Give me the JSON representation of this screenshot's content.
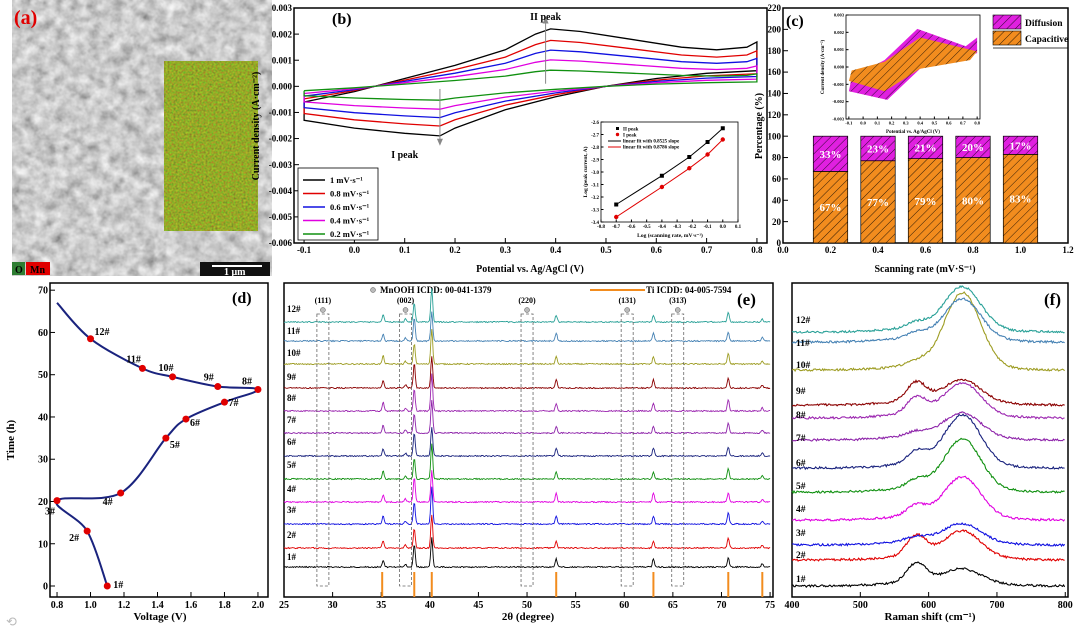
{
  "chart_data": {
    "a": {
      "panel_label": "(a)",
      "legend": [
        {
          "label": "O",
          "color": "#2e7d32"
        },
        {
          "label": "Mn",
          "color": "#e00000"
        }
      ],
      "scale_bar": "1 μm"
    },
    "b": {
      "type": "line",
      "panel_label": "(b)",
      "xlabel": "Potential vs. Ag/AgCl (V)",
      "ylabel": "Current density (A·cm⁻²)",
      "xlim": [
        -0.12,
        0.82
      ],
      "ylim": [
        -0.006,
        0.003
      ],
      "xticks": [
        -0.1,
        0.0,
        0.1,
        0.2,
        0.3,
        0.4,
        0.5,
        0.6,
        0.7,
        0.8
      ],
      "xtick_labels": [
        "-0.1",
        "0.0",
        "0.1",
        "0.2",
        "0.3",
        "0.4",
        "0.5",
        "0.6",
        "0.7",
        "0.8"
      ],
      "yticks": [
        0.003,
        0.002,
        0.001,
        0.0,
        -0.001,
        -0.002,
        -0.003,
        -0.004,
        -0.005,
        -0.006
      ],
      "ytick_labels": [
        "0.003",
        "0.002",
        "0.001",
        "0.000",
        "-0.001",
        "-0.002",
        "-0.003",
        "-0.004",
        "-0.005",
        "-0.006"
      ],
      "annotations": [
        "II peak",
        "I peak"
      ],
      "base_anodic": [
        [
          -0.1,
          -0.0006
        ],
        [
          0,
          -0.0002
        ],
        [
          0.1,
          0.0003
        ],
        [
          0.2,
          0.0008
        ],
        [
          0.3,
          0.0014
        ],
        [
          0.36,
          0.002
        ],
        [
          0.39,
          0.0022
        ],
        [
          0.45,
          0.0021
        ],
        [
          0.55,
          0.0018
        ],
        [
          0.65,
          0.0015
        ],
        [
          0.72,
          0.0014
        ],
        [
          0.78,
          0.0015
        ],
        [
          0.8,
          0.0017
        ]
      ],
      "base_cathodic": [
        [
          0.8,
          0.0006
        ],
        [
          0.7,
          0.0005
        ],
        [
          0.6,
          0.0003
        ],
        [
          0.5,
          0.0
        ],
        [
          0.4,
          -0.0004
        ],
        [
          0.3,
          -0.0009
        ],
        [
          0.2,
          -0.0016
        ],
        [
          0.17,
          -0.0019
        ],
        [
          0.1,
          -0.0018
        ],
        [
          0.0,
          -0.0016
        ],
        [
          -0.1,
          -0.0013
        ],
        [
          -0.1,
          -0.0006
        ]
      ],
      "series": [
        {
          "name": "1 mV·s⁻¹",
          "scale": 1.0,
          "color": "#000000"
        },
        {
          "name": "0.8 mV·s⁻¹",
          "scale": 0.8,
          "color": "#e00000"
        },
        {
          "name": "0.6 mV·s⁻¹",
          "scale": 0.63,
          "color": "#1010e0"
        },
        {
          "name": "0.4 mV·s⁻¹",
          "scale": 0.46,
          "color": "#e000e0"
        },
        {
          "name": "0.2 mV·s⁻¹",
          "scale": 0.28,
          "color": "#109010"
        }
      ],
      "inset": {
        "type": "scatter",
        "xlabel": "Log (scanning rate, mV·s⁻¹)",
        "ylabel": "Log (peak current, A)",
        "xlim": [
          -0.8,
          0.1
        ],
        "ylim": [
          -3.4,
          -2.6
        ],
        "xticks": [
          -0.8,
          -0.7,
          -0.6,
          -0.5,
          -0.4,
          -0.3,
          -0.2,
          -0.1,
          0.0,
          0.1
        ],
        "xtick_labels": [
          "-0.8",
          "-0.7",
          "-0.6",
          "-0.5",
          "-0.4",
          "-0.3",
          "-0.2",
          "-0.1",
          "0.0",
          "0.1"
        ],
        "yticks": [
          -2.6,
          -2.7,
          -2.8,
          -2.9,
          -3.0,
          -3.1,
          -3.2,
          -3.3,
          -3.4
        ],
        "ytick_labels": [
          "-2.6",
          "-2.7",
          "-2.8",
          "-2.9",
          "-3.0",
          "-3.1",
          "-3.2",
          "-3.3",
          "-3.4"
        ],
        "x": [
          -0.7,
          -0.4,
          -0.22,
          -0.1,
          0.0
        ],
        "series": [
          {
            "name": "II peak",
            "color": "#000000",
            "marker": "square",
            "values": [
              -3.26,
              -3.03,
              -2.88,
              -2.76,
              -2.65
            ]
          },
          {
            "name": "I peak",
            "color": "#e00000",
            "marker": "circle",
            "values": [
              -3.36,
              -3.12,
              -2.97,
              -2.86,
              -2.74
            ]
          }
        ],
        "fits": [
          {
            "name": "linear fit with 0.8525 slope",
            "color": "#000000"
          },
          {
            "name": "linear fit with 0.8786 slope",
            "color": "#e00000"
          }
        ]
      }
    },
    "c": {
      "type": "bar",
      "panel_label": "(c)",
      "xlabel": "Scanning rate (mV·S⁻¹)",
      "ylabel": "Percentage (%)",
      "xlim": [
        0,
        1.2
      ],
      "ylim": [
        0,
        220
      ],
      "xticks": [
        0.0,
        0.2,
        0.4,
        0.6,
        0.8,
        1.0,
        1.2
      ],
      "xtick_labels": [
        "0.0",
        "0.2",
        "0.4",
        "0.6",
        "0.8",
        "1.0",
        "1.2"
      ],
      "yticks": [
        0,
        20,
        40,
        60,
        80,
        100,
        120,
        140,
        160,
        180,
        200,
        220
      ],
      "ytick_labels": [
        "0",
        "20",
        "40",
        "60",
        "80",
        "100",
        "120",
        "140",
        "160",
        "180",
        "200",
        "220"
      ],
      "categories": [
        0.2,
        0.4,
        0.6,
        0.8,
        1.0
      ],
      "series": [
        {
          "name": "Capacitive",
          "color": "#f28c1e",
          "values": [
            67,
            77,
            79,
            80,
            83
          ],
          "labels": [
            "67%",
            "77%",
            "79%",
            "80%",
            "83%"
          ]
        },
        {
          "name": "Diffusion",
          "color": "#e020e0",
          "values": [
            33,
            23,
            21,
            20,
            17
          ],
          "labels": [
            "33%",
            "23%",
            "21%",
            "20%",
            "17%"
          ]
        }
      ],
      "inset": {
        "type": "area",
        "xlabel": "Potential vs. Ag/AgCl (V)",
        "ylabel": "Current density (A·cm⁻²)",
        "xlim": [
          -0.12,
          0.82
        ],
        "ylim": [
          -0.003,
          0.003
        ],
        "xticks": [
          -0.1,
          0.0,
          0.1,
          0.2,
          0.3,
          0.4,
          0.5,
          0.6,
          0.7,
          0.8
        ],
        "xtick_labels": [
          "-0.1",
          "0.0",
          "0.1",
          "0.2",
          "0.3",
          "0.4",
          "0.5",
          "0.6",
          "0.7",
          "0.8"
        ],
        "yticks": [
          0.003,
          0.002,
          0.001,
          0.0,
          -0.001,
          -0.002,
          -0.003
        ],
        "ytick_labels": [
          "0.003",
          "0.002",
          "0.001",
          "0.000",
          "-0.001",
          "-0.002",
          "-0.003"
        ],
        "diffusion": [
          [
            -0.1,
            -0.0014
          ],
          [
            -0.08,
            -0.0006
          ],
          [
            0.15,
            0.0004
          ],
          [
            0.38,
            0.0022
          ],
          [
            0.55,
            0.0017
          ],
          [
            0.72,
            0.0012
          ],
          [
            0.8,
            0.0017
          ],
          [
            0.8,
            0.0008
          ],
          [
            0.6,
            0.0003
          ],
          [
            0.4,
            -0.0001
          ],
          [
            0.17,
            -0.0019
          ],
          [
            -0.1,
            -0.0014
          ]
        ],
        "capacitive": [
          [
            -0.1,
            -0.0008
          ],
          [
            -0.08,
            -0.0002
          ],
          [
            0.15,
            0.0003
          ],
          [
            0.4,
            0.0017
          ],
          [
            0.8,
            0.0009
          ],
          [
            0.75,
            0.0004
          ],
          [
            0.4,
            -0.0001
          ],
          [
            0.15,
            -0.0014
          ],
          [
            -0.1,
            -0.0008
          ]
        ]
      }
    },
    "d": {
      "type": "line",
      "panel_label": "(d)",
      "xlabel": "Voltage (V)",
      "ylabel": "Time (h)",
      "xlim": [
        0.758,
        2.06
      ],
      "ylim": [
        -2.6,
        71.7
      ],
      "xticks": [
        0.8,
        1.0,
        1.2,
        1.4,
        1.6,
        1.8,
        2.0
      ],
      "xtick_labels": [
        "0.8",
        "1.0",
        "1.2",
        "1.4",
        "1.6",
        "1.8",
        "2.0"
      ],
      "yticks": [
        0,
        10,
        20,
        30,
        40,
        50,
        60,
        70
      ],
      "ytick_labels": [
        "0",
        "10",
        "20",
        "30",
        "40",
        "50",
        "60",
        "70"
      ],
      "curve_start": [
        0.8,
        67
      ],
      "points": [
        {
          "label": "12#",
          "v": 1.0,
          "t": 58.5
        },
        {
          "label": "11#",
          "v": 1.31,
          "t": 51.5
        },
        {
          "label": "10#",
          "v": 1.49,
          "t": 49.5
        },
        {
          "label": "9#",
          "v": 1.76,
          "t": 47.2
        },
        {
          "label": "8#",
          "v": 2.0,
          "t": 46.5
        },
        {
          "label": "7#",
          "v": 1.8,
          "t": 43.5
        },
        {
          "label": "6#",
          "v": 1.57,
          "t": 39.5
        },
        {
          "label": "5#",
          "v": 1.45,
          "t": 35
        },
        {
          "label": "4#",
          "v": 1.18,
          "t": 22
        },
        {
          "label": "3#",
          "v": 0.8,
          "t": 20.2
        },
        {
          "label": "2#",
          "v": 0.98,
          "t": 13
        },
        {
          "label": "1#",
          "v": 1.1,
          "t": 0
        }
      ],
      "line_color": "#1a237e",
      "point_color": "#e00000"
    },
    "e": {
      "type": "line",
      "panel_label": "(e)",
      "xlabel": "2θ (degree)",
      "xlim": [
        25,
        75.3
      ],
      "xticks": [
        25,
        30,
        35,
        40,
        45,
        50,
        55,
        60,
        65,
        70,
        75
      ],
      "xtick_labels": [
        "25",
        "30",
        "35",
        "40",
        "45",
        "50",
        "55",
        "60",
        "65",
        "70",
        "75"
      ],
      "legend": [
        "MnOOH ICDD: 00-041-1379",
        "Ti ICDD: 04-005-7594"
      ],
      "mnooh_peaks": [
        {
          "hkl": "(111)",
          "pos": 29.0
        },
        {
          "hkl": "(002)",
          "pos": 37.5
        },
        {
          "hkl": "(220)",
          "pos": 50.0
        },
        {
          "hkl": "(131)",
          "pos": 60.3
        },
        {
          "hkl": "(31-3)",
          "hkl_display": "(313̄)",
          "pos": 65.5
        }
      ],
      "ti_lines": [
        35.1,
        38.4,
        40.2,
        53.0,
        63.0,
        70.7,
        74.2
      ],
      "ti_color": "#f28c1e",
      "peaks": [
        [
          35.2,
          8
        ],
        [
          37.5,
          3
        ],
        [
          38.4,
          22
        ],
        [
          40.2,
          34
        ],
        [
          53.0,
          8
        ],
        [
          63.0,
          8
        ],
        [
          70.7,
          10
        ],
        [
          74.2,
          3
        ]
      ],
      "traces": [
        {
          "label": "1#",
          "color": "#000000"
        },
        {
          "label": "2#",
          "color": "#e00000"
        },
        {
          "label": "3#",
          "color": "#1010e0"
        },
        {
          "label": "4#",
          "color": "#e000e0"
        },
        {
          "label": "5#",
          "color": "#109010"
        },
        {
          "label": "6#",
          "color": "#1a237e"
        },
        {
          "label": "7#",
          "color": "#8e24aa"
        },
        {
          "label": "8#",
          "color": "#9c27b0"
        },
        {
          "label": "9#",
          "color": "#8b0000"
        },
        {
          "label": "10#",
          "color": "#9e9d24"
        },
        {
          "label": "11#",
          "color": "#4682b4"
        },
        {
          "label": "12#",
          "color": "#2aa198"
        }
      ]
    },
    "f": {
      "type": "line",
      "panel_label": "(f)",
      "xlabel": "Raman shift (cm⁻¹)",
      "xlim": [
        400,
        804
      ],
      "xticks": [
        400,
        500,
        600,
        700,
        800
      ],
      "xtick_labels": [
        "400",
        "500",
        "600",
        "700",
        "800"
      ],
      "traces": [
        {
          "label": "1#",
          "color": "#000000",
          "a580": 18,
          "a650": 12
        },
        {
          "label": "2#",
          "color": "#e00000",
          "a580": 20,
          "a650": 24
        },
        {
          "label": "3#",
          "color": "#1010e0",
          "a580": 4,
          "a650": 16
        },
        {
          "label": "4#",
          "color": "#e000e0",
          "a580": 10,
          "a650": 38
        },
        {
          "label": "5#",
          "color": "#109010",
          "a580": 8,
          "a650": 48
        },
        {
          "label": "6#",
          "color": "#1a237e",
          "a580": 12,
          "a650": 48
        },
        {
          "label": "7#",
          "color": "#8e24aa",
          "a580": 4,
          "a650": 22
        },
        {
          "label": "8#",
          "color": "#9c27b0",
          "a580": 16,
          "a650": 30
        },
        {
          "label": "9#",
          "color": "#8b0000",
          "a580": 18,
          "a650": 20
        },
        {
          "label": "10#",
          "color": "#9e9d24",
          "a580": 4,
          "a650": 72
        },
        {
          "label": "11#",
          "color": "#4682b4",
          "a580": 5,
          "a650": 38
        },
        {
          "label": "12#",
          "color": "#2aa198",
          "a580": 5,
          "a650": 40
        }
      ]
    }
  }
}
